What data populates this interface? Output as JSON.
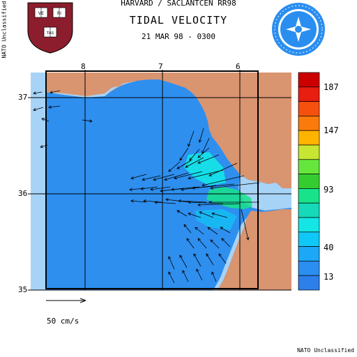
{
  "header": {
    "line1": "HARVARD / SACLANTCEN RR98",
    "title": "TIDAL VELOCITY",
    "timestamp": "21 MAR 98 - 0300"
  },
  "classification": {
    "side": "NATO Unclassified",
    "bottom": "NATO Unclassified"
  },
  "logos": {
    "left": "harvard-shield",
    "left_letters": [
      "VE",
      "RI",
      "TAS"
    ],
    "right": "nato-saclantcen-seal"
  },
  "map": {
    "lon_labels": [
      "8",
      "7",
      "6"
    ],
    "lat_labels": [
      "37",
      "36",
      "35"
    ],
    "land_color": "#d99470",
    "sea_color": "#2e8fef",
    "boundary_color": "#a7d3f7"
  },
  "colorbar": {
    "labels": [
      "187",
      "147",
      "93",
      "40",
      "13"
    ],
    "colors": [
      "#cc0000",
      "#e81e10",
      "#f5500e",
      "#fb7a0c",
      "#ffb400",
      "#c7e632",
      "#66e63c",
      "#34cc30",
      "#18e38a",
      "#16d9b9",
      "#14e6e6",
      "#10c8f5",
      "#1ca8f6",
      "#2a8ff0",
      "#2d7fea"
    ]
  },
  "scale": {
    "label": "50 cm/s"
  }
}
